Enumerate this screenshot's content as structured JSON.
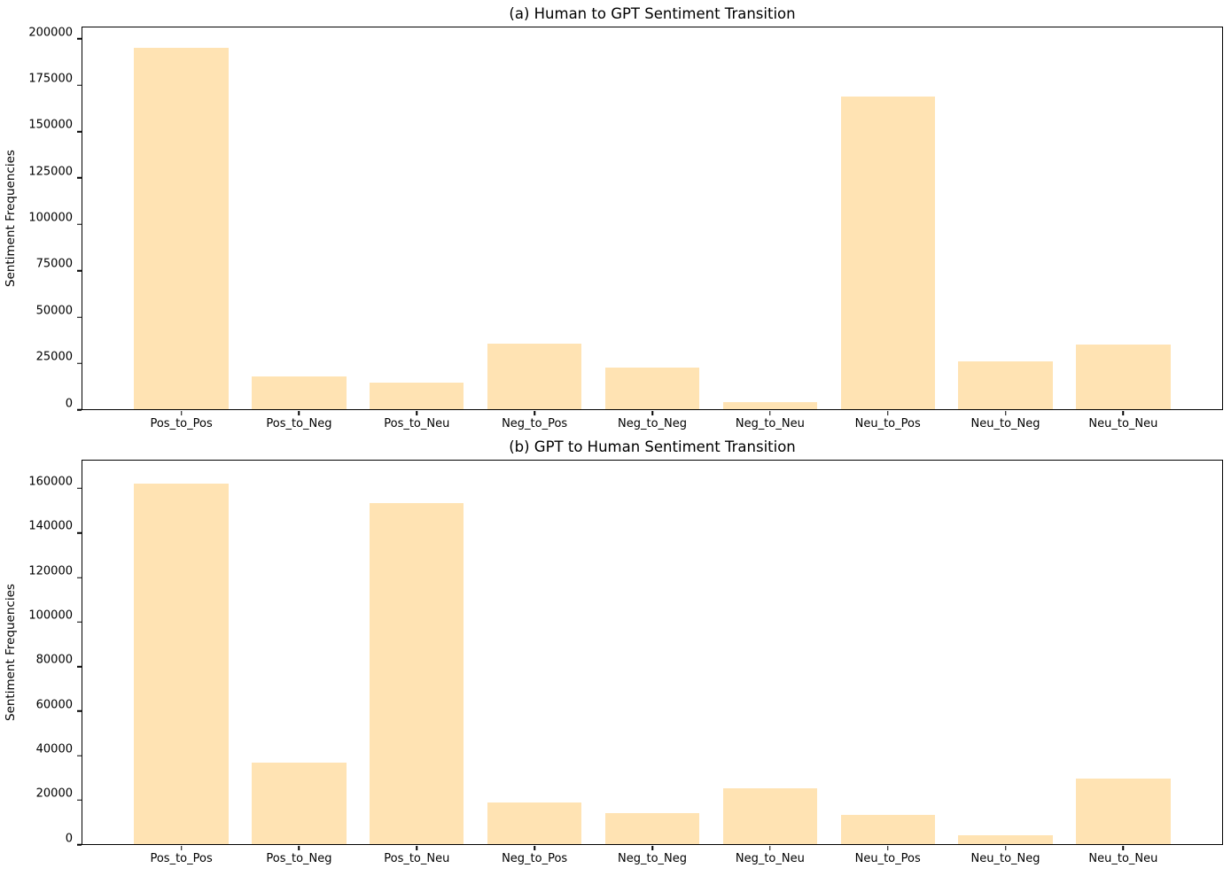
{
  "figure": {
    "bar_color": "#ffe3b3",
    "axis_color": "#000000",
    "background_color": "#ffffff",
    "text_color": "#000000"
  },
  "chart_data": [
    {
      "type": "bar",
      "title": "(a) Human to GPT Sentiment Transition",
      "xlabel": "",
      "ylabel": "Sentiment Frequencies",
      "categories": [
        "Pos_to_Pos",
        "Pos_to_Neg",
        "Pos_to_Neu",
        "Neg_to_Pos",
        "Neg_to_Neg",
        "Neg_to_Neu",
        "Neu_to_Pos",
        "Neu_to_Neg",
        "Neu_to_Neu"
      ],
      "values": [
        195800,
        17600,
        14300,
        35500,
        22400,
        4000,
        169500,
        26000,
        34800
      ],
      "yticks": [
        0,
        25000,
        50000,
        75000,
        100000,
        125000,
        150000,
        175000,
        200000
      ],
      "ylim": [
        0,
        206700
      ],
      "grid": false,
      "legend": null,
      "bar_color": "#ffe3b3"
    },
    {
      "type": "bar",
      "title": "(b) GPT to Human Sentiment Transition",
      "xlabel": "",
      "ylabel": "Sentiment Frequencies",
      "categories": [
        "Pos_to_Pos",
        "Pos_to_Neg",
        "Pos_to_Neu",
        "Neg_to_Pos",
        "Neg_to_Neg",
        "Neg_to_Neu",
        "Neu_to_Pos",
        "Neu_to_Neg",
        "Neu_to_Neu"
      ],
      "values": [
        162800,
        36600,
        153900,
        18900,
        14100,
        25200,
        13000,
        3900,
        29700
      ],
      "yticks": [
        0,
        20000,
        40000,
        60000,
        80000,
        100000,
        120000,
        140000,
        160000
      ],
      "ylim": [
        0,
        173000
      ],
      "grid": false,
      "legend": null,
      "bar_color": "#ffe3b3"
    }
  ]
}
